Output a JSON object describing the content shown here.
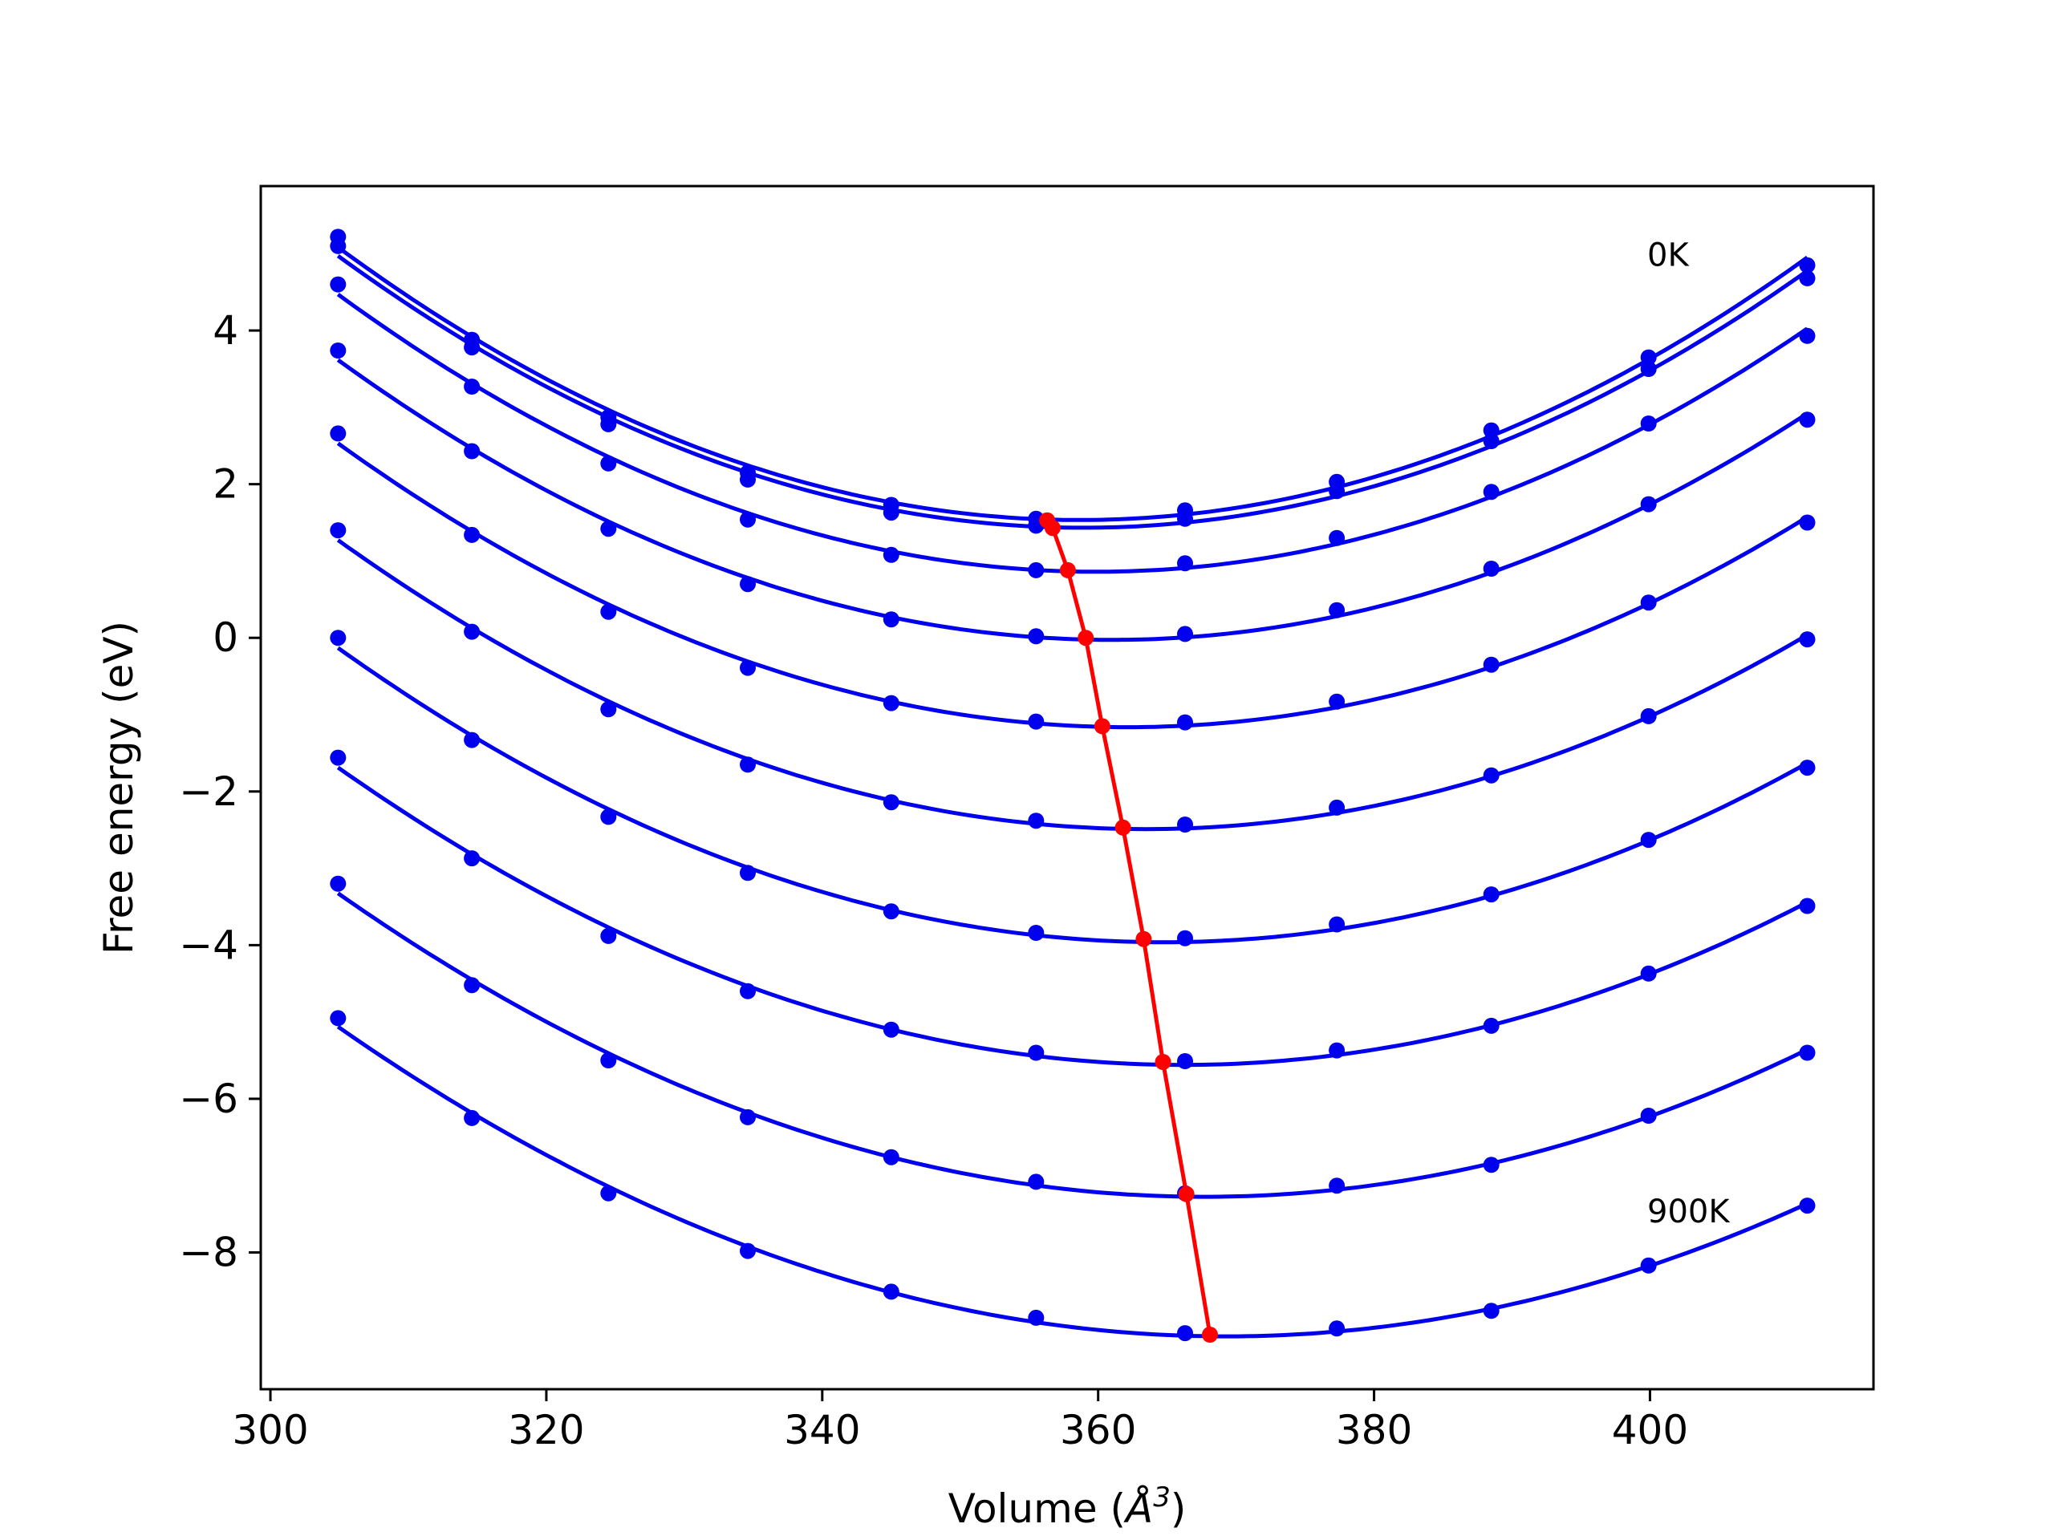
{
  "chart_data": {
    "type": "line",
    "title": "",
    "xlabel": "Volume (",
    "xlabel_symbol": "Å",
    "xlabel_sup": "3",
    "xlabel_close": ")",
    "ylabel": "Free energy (eV)",
    "xlim": [
      299.3,
      416.2
    ],
    "ylim": [
      -9.78,
      5.88
    ],
    "xticks": [
      300,
      320,
      340,
      360,
      380,
      400
    ],
    "xtick_labels": [
      "300",
      "320",
      "340",
      "360",
      "380",
      "400"
    ],
    "yticks": [
      -8,
      -6,
      -4,
      -2,
      0,
      2,
      4
    ],
    "ytick_labels": [
      "−8",
      "−6",
      "−4",
      "−2",
      "0",
      "2",
      "4"
    ],
    "annotations": [
      {
        "text": "0K",
        "x": 399.8,
        "y": 5.0
      },
      {
        "text": "900K",
        "x": 399.8,
        "y": -7.45
      }
    ],
    "grid": false,
    "legend": "none",
    "colors": {
      "curves": "#0000ee",
      "minima": "#ff0000"
    },
    "x": [
      304.9,
      314.6,
      324.5,
      334.6,
      345.0,
      355.5,
      366.3,
      377.3,
      388.5,
      399.9,
      411.4
    ],
    "series": [
      {
        "values": [
          5.22,
          3.88,
          2.87,
          2.15,
          1.73,
          1.55,
          1.66,
          2.03,
          2.7,
          3.65,
          4.85
        ]
      },
      {
        "values": [
          5.1,
          3.78,
          2.78,
          2.06,
          1.63,
          1.46,
          1.55,
          1.91,
          2.56,
          3.5,
          4.68
        ]
      },
      {
        "values": [
          4.6,
          3.27,
          2.27,
          1.54,
          1.08,
          0.88,
          0.97,
          1.3,
          1.9,
          2.79,
          3.93
        ]
      },
      {
        "values": [
          3.74,
          2.43,
          1.42,
          0.7,
          0.24,
          0.02,
          0.05,
          0.36,
          0.9,
          1.74,
          2.84
        ]
      },
      {
        "values": [
          2.66,
          1.34,
          0.34,
          -0.39,
          -0.85,
          -1.09,
          -1.1,
          -0.83,
          -0.35,
          0.46,
          1.5
        ]
      },
      {
        "values": [
          1.4,
          0.08,
          -0.93,
          -1.65,
          -2.14,
          -2.38,
          -2.43,
          -2.21,
          -1.79,
          -1.02,
          -0.02
        ]
      },
      {
        "values": [
          0.0,
          -1.33,
          -2.33,
          -3.06,
          -3.56,
          -3.84,
          -3.91,
          -3.73,
          -3.34,
          -2.63,
          -1.69
        ]
      },
      {
        "values": [
          -1.56,
          -2.87,
          -3.88,
          -4.6,
          -5.1,
          -5.4,
          -5.51,
          -5.37,
          -5.05,
          -4.37,
          -3.49
        ]
      },
      {
        "values": [
          -3.2,
          -4.52,
          -5.5,
          -6.24,
          -6.76,
          -7.08,
          -7.23,
          -7.13,
          -6.86,
          -6.22,
          -5.4
        ]
      },
      {
        "values": [
          -4.95,
          -6.25,
          -7.23,
          -7.98,
          -8.51,
          -8.85,
          -9.05,
          -8.99,
          -8.76,
          -8.17,
          -7.39
        ]
      }
    ],
    "minima": {
      "x": [
        356.3,
        356.7,
        357.8,
        359.1,
        360.3,
        361.8,
        363.3,
        364.7,
        366.4,
        368.1
      ],
      "y": [
        1.53,
        1.43,
        0.88,
        0.0,
        -1.15,
        -2.47,
        -3.92,
        -5.52,
        -7.24,
        -9.07
      ]
    }
  }
}
